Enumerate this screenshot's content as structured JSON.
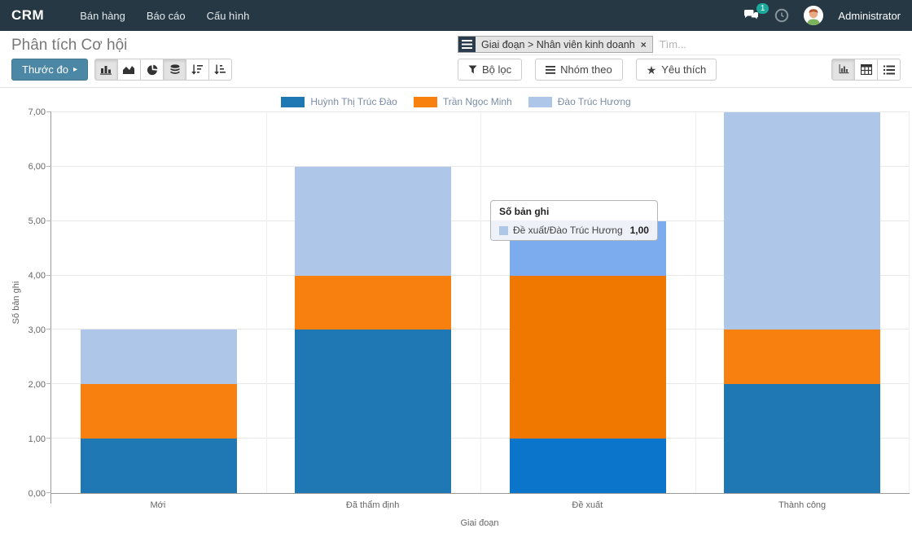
{
  "nav": {
    "brand": "CRM",
    "items": [
      {
        "label": "Bán hàng"
      },
      {
        "label": "Báo cáo"
      },
      {
        "label": "Cấu hình"
      }
    ],
    "badge_count": "1",
    "user": "Administrator"
  },
  "header": {
    "title": "Phân tích Cơ hội"
  },
  "search": {
    "facet_label": "Giai đoạn > Nhân viên kinh doanh",
    "placeholder": "Tìm...",
    "remove_icon": "×"
  },
  "toolbar": {
    "measures_label": "Thước đo",
    "filters_label": "Bộ lọc",
    "groupby_label": "Nhóm theo",
    "favorites_label": "Yêu thích"
  },
  "icons": {
    "favorite": "★",
    "caret": "▸",
    "remove": "×"
  },
  "colors": {
    "navbar_bg": "#253844",
    "primary_button": "#4c87a5",
    "badge": "#1ca99c",
    "legend_text": "#7b8ca3"
  },
  "chart_data": {
    "type": "bar",
    "stacked": true,
    "title": "",
    "categories": [
      "Mới",
      "Đã thẩm định",
      "Đề xuất",
      "Thành công"
    ],
    "series": [
      {
        "name": "Huỳnh Thị Trúc Đào",
        "color": "#1f77b4",
        "values": [
          1,
          3,
          1,
          2
        ]
      },
      {
        "name": "Trần Ngọc Minh",
        "color": "#f8800f",
        "values": [
          1,
          1,
          3,
          1
        ]
      },
      {
        "name": "Đào Trúc Hương",
        "color": "#aec7e8",
        "values": [
          1,
          2,
          1,
          4
        ]
      }
    ],
    "totals": [
      3,
      6,
      5,
      7
    ],
    "xlabel": "Giai đoạn",
    "ylabel": "Số bản ghi",
    "ylim": [
      0,
      7
    ],
    "yticks": [
      "0,00",
      "1,00",
      "2,00",
      "3,00",
      "4,00",
      "5,00",
      "6,00",
      "7,00"
    ],
    "grid": true,
    "legend_position": "top",
    "hovered": {
      "category_index": 2,
      "colors": [
        "#0b74cb",
        "#f07800",
        "#7cabee"
      ]
    },
    "tooltip": {
      "title": "Số bản ghi",
      "row_label": "Đề xuất/Đào Trúc Hương",
      "row_value": "1,00",
      "swatch_color": "#aec7e8"
    }
  }
}
